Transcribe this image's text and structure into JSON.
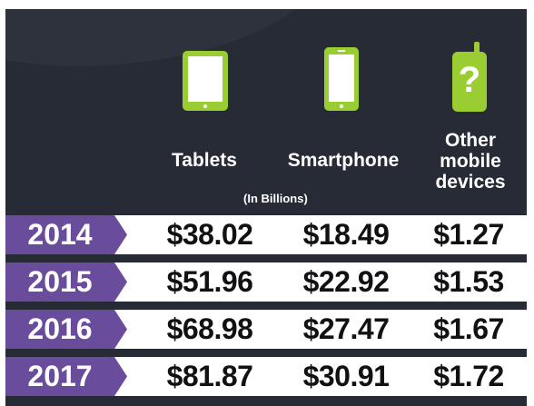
{
  "colors": {
    "header_bg": "#262b35",
    "icon_green": "#9acd32",
    "year_purple": "#6a4c9c",
    "text_dark": "#111111"
  },
  "chart_data": {
    "type": "table",
    "columns": [
      "Tablets",
      "Smartphone",
      "Other mobile devices"
    ],
    "column_label_lines": [
      [
        "Tablets"
      ],
      [
        "Smartphone"
      ],
      [
        "Other",
        "mobile",
        "devices"
      ]
    ],
    "icons": [
      "tablet-icon",
      "smartphone-icon",
      "question-mark-phone-icon"
    ],
    "unit": "(In Billions)",
    "rows": [
      {
        "year": "2014",
        "values": [
          "$38.02",
          "$18.49",
          "$1.27"
        ]
      },
      {
        "year": "2015",
        "values": [
          "$51.96",
          "$22.92",
          "$1.53"
        ]
      },
      {
        "year": "2016",
        "values": [
          "$68.98",
          "$27.47",
          "$1.67"
        ]
      },
      {
        "year": "2017",
        "values": [
          "$81.87",
          "$30.91",
          "$1.72"
        ]
      }
    ]
  }
}
